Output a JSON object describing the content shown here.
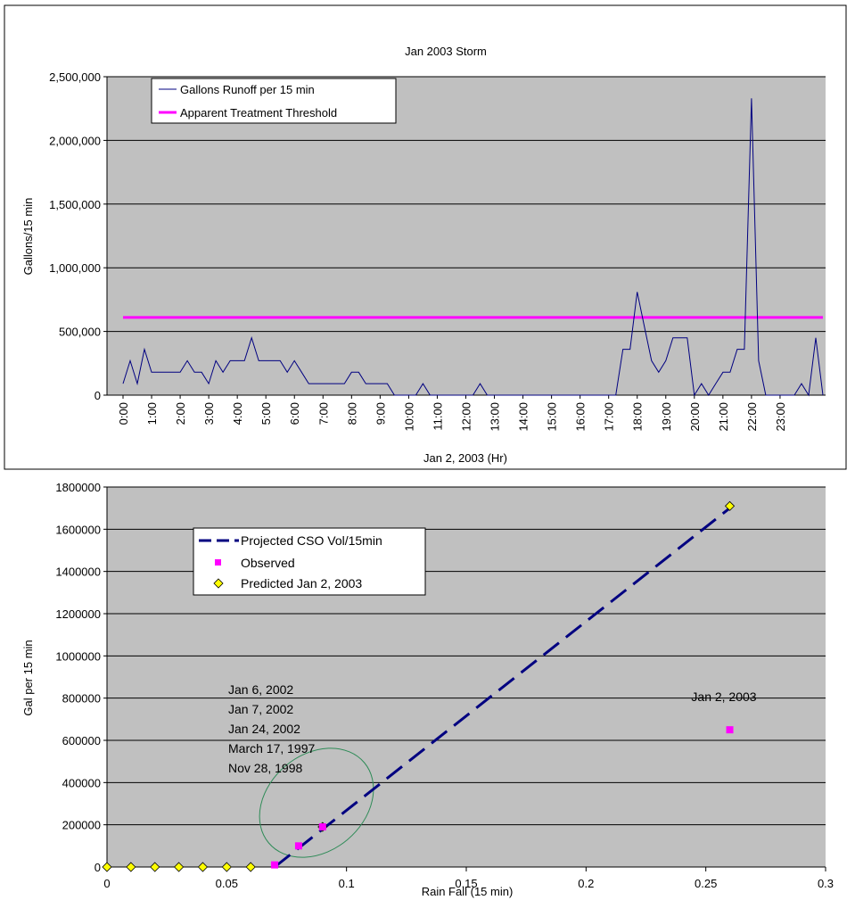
{
  "chart_data": [
    {
      "type": "line",
      "title": "Jan 2003 Storm",
      "xlabel": "Jan 2, 2003 (Hr)",
      "ylabel": "Gallons/15 min",
      "ylim": [
        0,
        2500000
      ],
      "yticks": [
        "0",
        "500,000",
        "1,000,000",
        "1,500,000",
        "2,000,000",
        "2,500,000"
      ],
      "yticks_values": [
        0,
        500000,
        1000000,
        1500000,
        2000000,
        2500000
      ],
      "xticks": [
        "0:00",
        "1:00",
        "2:00",
        "3:00",
        "4:00",
        "5:00",
        "6:00",
        "7:00",
        "8:00",
        "9:00",
        "10:00",
        "11:00",
        "12:00",
        "13:00",
        "14:00",
        "15:00",
        "16:00",
        "17:00",
        "18:00",
        "19:00",
        "20:00",
        "21:00",
        "22:00",
        "23:00"
      ],
      "grid": true,
      "legend_position": "top-left",
      "plot_background": "#c0c0c0",
      "series": [
        {
          "name": "Gallons Runoff per 15 min",
          "color": "#000080",
          "values": [
            90000,
            270000,
            90000,
            360000,
            180000,
            180000,
            180000,
            180000,
            180000,
            270000,
            180000,
            180000,
            90000,
            270000,
            180000,
            270000,
            270000,
            270000,
            450000,
            270000,
            270000,
            270000,
            270000,
            180000,
            270000,
            180000,
            90000,
            90000,
            90000,
            90000,
            90000,
            90000,
            180000,
            180000,
            90000,
            90000,
            90000,
            90000,
            0,
            0,
            0,
            0,
            90000,
            0,
            0,
            0,
            0,
            0,
            0,
            0,
            90000,
            0,
            0,
            0,
            0,
            0,
            0,
            0,
            0,
            0,
            0,
            0,
            0,
            0,
            0,
            0,
            0,
            0,
            0,
            0,
            360000,
            360000,
            810000,
            540000,
            270000,
            180000,
            270000,
            450000,
            450000,
            450000,
            0,
            90000,
            0,
            90000,
            180000,
            180000,
            360000,
            360000,
            2330000,
            270000,
            0,
            0,
            0,
            0,
            0,
            90000,
            0,
            450000,
            0
          ]
        },
        {
          "name": "Apparent Treatment Threshold",
          "color": "#ff00ff",
          "values": [
            610000
          ]
        }
      ]
    },
    {
      "type": "scatter",
      "xlabel": "Rain Fall (15 min)",
      "ylabel": "Gal per 15 min",
      "xlim": [
        0,
        0.3
      ],
      "ylim": [
        0,
        1800000
      ],
      "xticks": [
        "0",
        "0.05",
        "0.1",
        "0.15",
        "0.2",
        "0.25",
        "0.3"
      ],
      "xticks_values": [
        0,
        0.05,
        0.1,
        0.15,
        0.2,
        0.25,
        0.3
      ],
      "yticks": [
        "0",
        "200000",
        "400000",
        "600000",
        "800000",
        "1000000",
        "1200000",
        "1400000",
        "1600000",
        "1800000"
      ],
      "yticks_values": [
        0,
        200000,
        400000,
        600000,
        800000,
        1000000,
        1200000,
        1400000,
        1600000,
        1800000
      ],
      "grid": true,
      "legend_position": "top-left",
      "plot_background": "#c0c0c0",
      "series": [
        {
          "name": "Projected CSO Vol/15min",
          "style": "dashed-line",
          "color": "#000080",
          "x": [
            0.07,
            0.26
          ],
          "y": [
            0,
            1700000
          ]
        },
        {
          "name": "Observed",
          "style": "square",
          "color": "#ff00ff",
          "x": [
            0.07,
            0.08,
            0.09,
            0.26
          ],
          "y": [
            10000,
            100000,
            190000,
            650000
          ]
        },
        {
          "name": "Predicted Jan 2, 2003",
          "style": "diamond",
          "color": "#ffff00",
          "x": [
            0,
            0.01,
            0.02,
            0.03,
            0.04,
            0.05,
            0.06,
            0.09,
            0.26
          ],
          "y": [
            0,
            0,
            0,
            0,
            0,
            0,
            0,
            190000,
            1710000
          ]
        }
      ],
      "annotations": {
        "event_list": [
          "Jan 6, 2002",
          "Jan 7, 2002",
          "Jan 24, 2002",
          "March 17, 1997",
          "Nov 28, 1998"
        ],
        "jan2_label": "Jan 2, 2003"
      }
    }
  ]
}
